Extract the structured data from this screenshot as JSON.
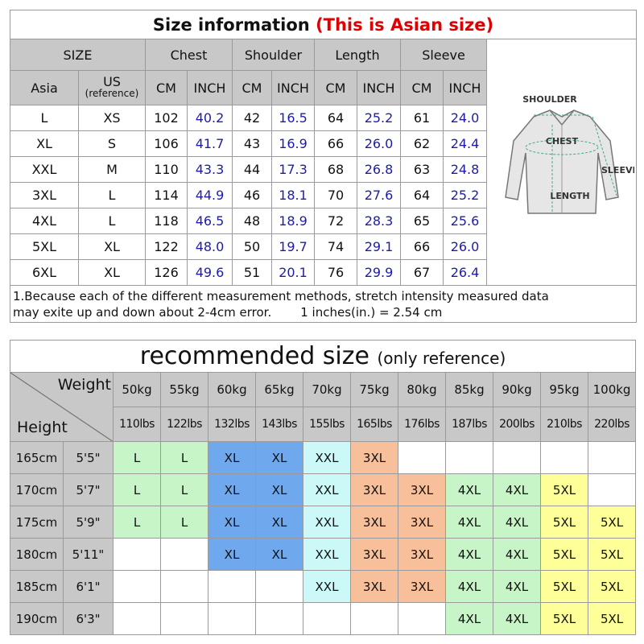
{
  "size_info": {
    "title": "Size information",
    "title_note": "(This is Asian size)",
    "groups": [
      "SIZE",
      "Chest",
      "Shoulder",
      "Length",
      "Sleeve"
    ],
    "sub_headers": {
      "asia": "Asia",
      "us": "US",
      "us_note": "(reference)",
      "cm": "CM",
      "inch": "INCH"
    },
    "rows": [
      [
        "L",
        "XS",
        "102",
        "40.2",
        "42",
        "16.5",
        "64",
        "25.2",
        "61",
        "24.0"
      ],
      [
        "XL",
        "S",
        "106",
        "41.7",
        "43",
        "16.9",
        "66",
        "26.0",
        "62",
        "24.4"
      ],
      [
        "XXL",
        "M",
        "110",
        "43.3",
        "44",
        "17.3",
        "68",
        "26.8",
        "63",
        "24.8"
      ],
      [
        "3XL",
        "L",
        "114",
        "44.9",
        "46",
        "18.1",
        "70",
        "27.6",
        "64",
        "25.2"
      ],
      [
        "4XL",
        "L",
        "118",
        "46.5",
        "48",
        "18.9",
        "72",
        "28.3",
        "65",
        "25.6"
      ],
      [
        "5XL",
        "XL",
        "122",
        "48.0",
        "50",
        "19.7",
        "74",
        "29.1",
        "66",
        "26.0"
      ],
      [
        "6XL",
        "XL",
        "126",
        "49.6",
        "51",
        "20.1",
        "76",
        "29.9",
        "67",
        "26.4"
      ]
    ],
    "note_line1": "1.Because each of the different measurement methods, stretch intensity measured data",
    "note_line2": "may exite up and down about 2-4cm error.",
    "note_conversion": "1 inches(in.) = 2.54 cm"
  },
  "diagram": {
    "shoulder": "SHOULDER",
    "chest": "CHEST",
    "sleeve": "SLEEVE",
    "length": "LENGTH"
  },
  "recommended": {
    "title": "recommended size",
    "title_note": "(only reference)",
    "weight_label": "Weight",
    "height_label": "Height",
    "weights_kg": [
      "50kg",
      "55kg",
      "60kg",
      "65kg",
      "70kg",
      "75kg",
      "80kg",
      "85kg",
      "90kg",
      "95kg",
      "100kg"
    ],
    "weights_lbs": [
      "110lbs",
      "122lbs",
      "132lbs",
      "143lbs",
      "155lbs",
      "165lbs",
      "176lbs",
      "187lbs",
      "200lbs",
      "210lbs",
      "220lbs"
    ],
    "rows": [
      {
        "cm": "165cm",
        "ft": "5'5\"",
        "cells": [
          {
            "size": "L",
            "color": "#c8f5c8"
          },
          {
            "size": "L",
            "color": "#c8f5c8"
          },
          {
            "size": "XL",
            "color": "#70a8ee"
          },
          {
            "size": "XL",
            "color": "#70a8ee"
          },
          {
            "size": "XXL",
            "color": "#ccf8f8"
          },
          {
            "size": "3XL",
            "color": "#f8c09a"
          },
          null,
          null,
          null,
          null,
          null
        ]
      },
      {
        "cm": "170cm",
        "ft": "5'7\"",
        "cells": [
          {
            "size": "L",
            "color": "#c8f5c8"
          },
          {
            "size": "L",
            "color": "#c8f5c8"
          },
          {
            "size": "XL",
            "color": "#70a8ee"
          },
          {
            "size": "XL",
            "color": "#70a8ee"
          },
          {
            "size": "XXL",
            "color": "#ccf8f8"
          },
          {
            "size": "3XL",
            "color": "#f8c09a"
          },
          {
            "size": "3XL",
            "color": "#f8c09a"
          },
          {
            "size": "4XL",
            "color": "#c8f5c8"
          },
          {
            "size": "4XL",
            "color": "#c8f5c8"
          },
          {
            "size": "5XL",
            "color": "#ffff99"
          },
          null
        ]
      },
      {
        "cm": "175cm",
        "ft": "5'9\"",
        "cells": [
          {
            "size": "L",
            "color": "#c8f5c8"
          },
          {
            "size": "L",
            "color": "#c8f5c8"
          },
          {
            "size": "XL",
            "color": "#70a8ee"
          },
          {
            "size": "XL",
            "color": "#70a8ee"
          },
          {
            "size": "XXL",
            "color": "#ccf8f8"
          },
          {
            "size": "3XL",
            "color": "#f8c09a"
          },
          {
            "size": "3XL",
            "color": "#f8c09a"
          },
          {
            "size": "4XL",
            "color": "#c8f5c8"
          },
          {
            "size": "4XL",
            "color": "#c8f5c8"
          },
          {
            "size": "5XL",
            "color": "#ffff99"
          },
          {
            "size": "5XL",
            "color": "#ffff99"
          }
        ]
      },
      {
        "cm": "180cm",
        "ft": "5'11\"",
        "cells": [
          null,
          null,
          {
            "size": "XL",
            "color": "#70a8ee"
          },
          {
            "size": "XL",
            "color": "#70a8ee"
          },
          {
            "size": "XXL",
            "color": "#ccf8f8"
          },
          {
            "size": "3XL",
            "color": "#f8c09a"
          },
          {
            "size": "3XL",
            "color": "#f8c09a"
          },
          {
            "size": "4XL",
            "color": "#c8f5c8"
          },
          {
            "size": "4XL",
            "color": "#c8f5c8"
          },
          {
            "size": "5XL",
            "color": "#ffff99"
          },
          {
            "size": "5XL",
            "color": "#ffff99"
          }
        ]
      },
      {
        "cm": "185cm",
        "ft": "6'1\"",
        "cells": [
          null,
          null,
          null,
          null,
          {
            "size": "XXL",
            "color": "#ccf8f8"
          },
          {
            "size": "3XL",
            "color": "#f8c09a"
          },
          {
            "size": "3XL",
            "color": "#f8c09a"
          },
          {
            "size": "4XL",
            "color": "#c8f5c8"
          },
          {
            "size": "4XL",
            "color": "#c8f5c8"
          },
          {
            "size": "5XL",
            "color": "#ffff99"
          },
          {
            "size": "5XL",
            "color": "#ffff99"
          }
        ]
      },
      {
        "cm": "190cm",
        "ft": "6'3\"",
        "cells": [
          null,
          null,
          null,
          null,
          null,
          null,
          null,
          {
            "size": "4XL",
            "color": "#c8f5c8"
          },
          {
            "size": "4XL",
            "color": "#c8f5c8"
          },
          {
            "size": "5XL",
            "color": "#ffff99"
          },
          {
            "size": "5XL",
            "color": "#ffff99"
          }
        ]
      }
    ]
  }
}
